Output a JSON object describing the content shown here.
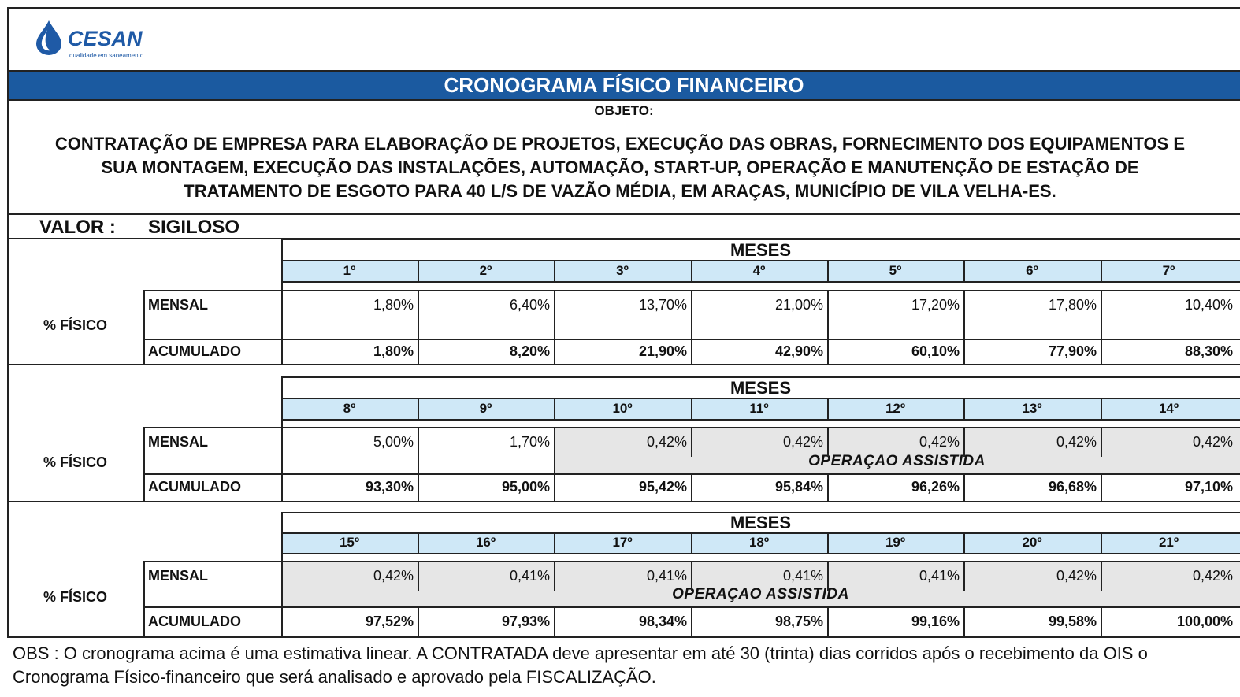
{
  "logo": {
    "name": "CESAN",
    "tagline": "qualidade em saneamento"
  },
  "title": "CRONOGRAMA FÍSICO FINANCEIRO",
  "object_label": "OBJETO:",
  "object_lines": [
    "CONTRATAÇÃO DE EMPRESA PARA ELABORAÇÃO DE PROJETOS, EXECUÇÃO DAS OBRAS, FORNECIMENTO DOS EQUIPAMENTOS E",
    "SUA MONTAGEM, EXECUÇÃO DAS INSTALAÇÕES, AUTOMAÇÃO, START-UP, OPERAÇÃO E MANUTENÇÃO DE ESTAÇÃO DE",
    "TRATAMENTO DE ESGOTO PARA 40 L/S DE VAZÃO MÉDIA, EM ARAÇAS, MUNICÍPIO DE VILA VELHA-ES."
  ],
  "value_label": "VALOR :",
  "value": "SIGILOSO",
  "blocks": [
    {
      "header": "MESES",
      "row_label": "% FÍSICO",
      "months": [
        "1º",
        "2º",
        "3º",
        "4º",
        "5º",
        "6º",
        "7º"
      ],
      "rows": [
        {
          "label": "MENSAL",
          "values": [
            "1,80%",
            "6,40%",
            "13,70%",
            "21,00%",
            "17,20%",
            "17,80%",
            "10,40%"
          ]
        },
        {
          "label": "ACUMULADO",
          "values": [
            "1,80%",
            "8,20%",
            "21,90%",
            "42,90%",
            "60,10%",
            "77,90%",
            "88,30%"
          ]
        }
      ]
    },
    {
      "header": "MESES",
      "row_label": "% FÍSICO",
      "months": [
        "8º",
        "9º",
        "10º",
        "11º",
        "12º",
        "13º",
        "14º"
      ],
      "rows": [
        {
          "label": "MENSAL",
          "values": [
            "5,00%",
            "1,70%",
            "0,42%",
            "0,42%",
            "0,42%",
            "0,42%",
            "0,42%"
          ]
        },
        {
          "label": "ACUMULADO",
          "values": [
            "93,30%",
            "95,00%",
            "95,42%",
            "95,84%",
            "96,26%",
            "96,68%",
            "97,10%"
          ]
        }
      ],
      "note": "OPERAÇAO ASSISTIDA"
    },
    {
      "header": "MESES",
      "row_label": "% FÍSICO",
      "months": [
        "15º",
        "16º",
        "17º",
        "18º",
        "19º",
        "20º",
        "21º"
      ],
      "rows": [
        {
          "label": "MENSAL",
          "values": [
            "0,42%",
            "0,41%",
            "0,41%",
            "0,41%",
            "0,41%",
            "0,42%",
            "0,42%"
          ]
        },
        {
          "label": "ACUMULADO",
          "values": [
            "97,52%",
            "97,93%",
            "98,34%",
            "98,75%",
            "99,16%",
            "99,58%",
            "100,00%"
          ]
        }
      ],
      "note": "OPERAÇAO ASSISTIDA"
    }
  ],
  "obs_lines": [
    "OBS : O cronograma acima é uma estimativa linear. A CONTRATADA deve apresentar em até 30 (trinta) dias corridos após o recebimento da OIS o",
    "Cronograma Físico-financeiro que será analisado e aprovado pela FISCALIZAÇÃO."
  ]
}
